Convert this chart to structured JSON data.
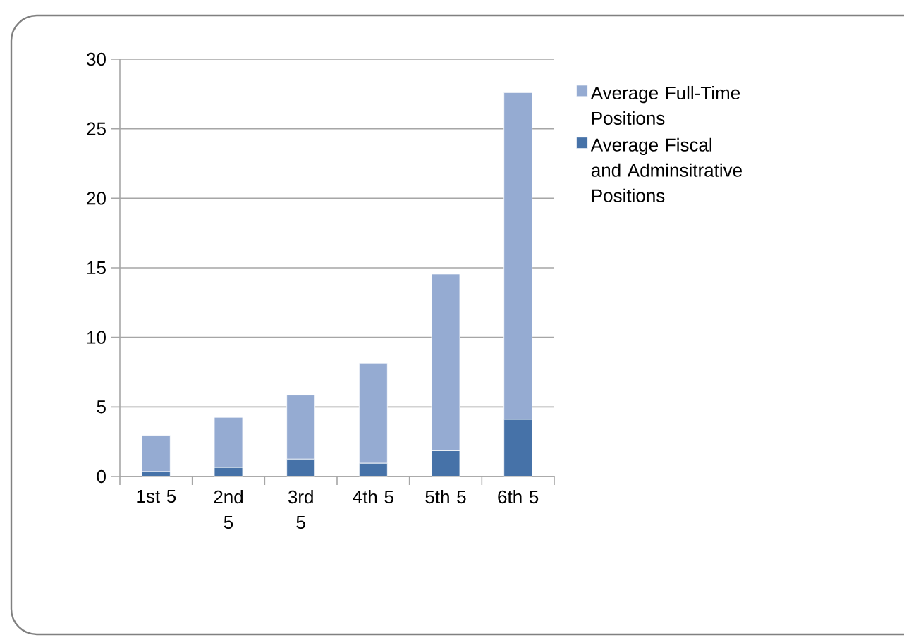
{
  "chart_data": {
    "type": "bar",
    "stacked": true,
    "categories": [
      "1st 5",
      "2nd 5",
      "3rd 5",
      "4th 5",
      "5th 5",
      "6th 5"
    ],
    "series": [
      {
        "name": "Average Fiscal and Adminsitrative Positions",
        "color": "#4672a8",
        "values": [
          0.35,
          0.65,
          1.25,
          0.95,
          1.85,
          4.1
        ]
      },
      {
        "name": "Average Full-Time Positions",
        "color": "#95abd2",
        "values": [
          2.6,
          3.6,
          4.6,
          7.2,
          12.7,
          23.5
        ]
      }
    ],
    "ylim": [
      0,
      30
    ],
    "yticks": [
      0,
      5,
      10,
      15,
      20,
      25,
      30
    ],
    "grid": "y",
    "legend": "right"
  }
}
